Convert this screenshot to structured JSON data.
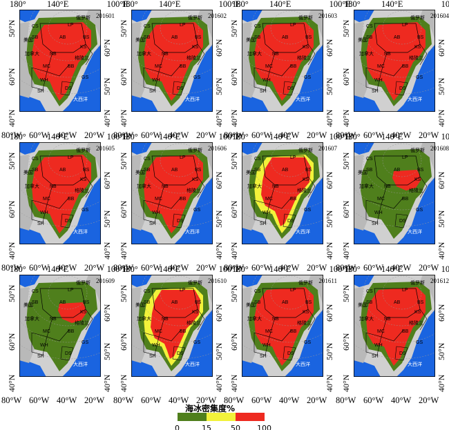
{
  "panels": [
    {
      "id": "201601",
      "label": "201601",
      "level": "high"
    },
    {
      "id": "201602",
      "label": "201602",
      "level": "high"
    },
    {
      "id": "201603",
      "label": "201603",
      "level": "high"
    },
    {
      "id": "201604",
      "label": "201604",
      "level": "high"
    },
    {
      "id": "201605",
      "label": "201605",
      "level": "high"
    },
    {
      "id": "201606",
      "label": "201606",
      "level": "high"
    },
    {
      "id": "201607",
      "label": "201607",
      "level": "mid"
    },
    {
      "id": "201608",
      "label": "201608",
      "level": "low"
    },
    {
      "id": "201609",
      "label": "201609",
      "level": "low"
    },
    {
      "id": "201610",
      "label": "201610",
      "level": "mid"
    },
    {
      "id": "201611",
      "label": "201611",
      "level": "high"
    },
    {
      "id": "201612",
      "label": "201612",
      "level": "high"
    }
  ],
  "axes": {
    "top_left": "180°",
    "top_mid": "140°E",
    "top_right": "100°E",
    "lat_left_upper": "50°N",
    "lat_left_mid": "60°N",
    "lat_right_upper": "60°N",
    "lat_right_lower": "50°N",
    "lat_left_lower": "40°N",
    "lat_right_bottom": "40°N",
    "bot_1": "80°W",
    "bot_2": "60°W",
    "bot_3": "40°W",
    "bot_4": "20°W"
  },
  "region_labels": {
    "russia": "俄罗斯",
    "canada": "加拿大",
    "greenland": "格陵兰",
    "atlantic": "大西洋",
    "us": "美国",
    "cs": "CS",
    "lp": "LP",
    "ab": "AB",
    "nb": "NB",
    "bs": "BS",
    "ks": "KS",
    "bb": "BB",
    "gs": "GS",
    "ds": "DS",
    "mc": "MC",
    "wh": "WH",
    "sh": "SH",
    "sb": "SB",
    "es": "ES",
    "cb": "CB"
  },
  "legend": {
    "title": "海冰密集度%",
    "ticks": [
      "0",
      "15",
      "50",
      "100"
    ],
    "colors": {
      "low": "#4f7f1c",
      "mid": "#f2f23a",
      "high": "#ee2a20"
    }
  },
  "colors": {
    "ocean": "#1a64e0",
    "land": "#b9b9b9",
    "landlight": "#d0d0d0",
    "ice_green": "#4f7f1c",
    "ice_yellow": "#f2f23a",
    "ice_red": "#ee2a20"
  }
}
